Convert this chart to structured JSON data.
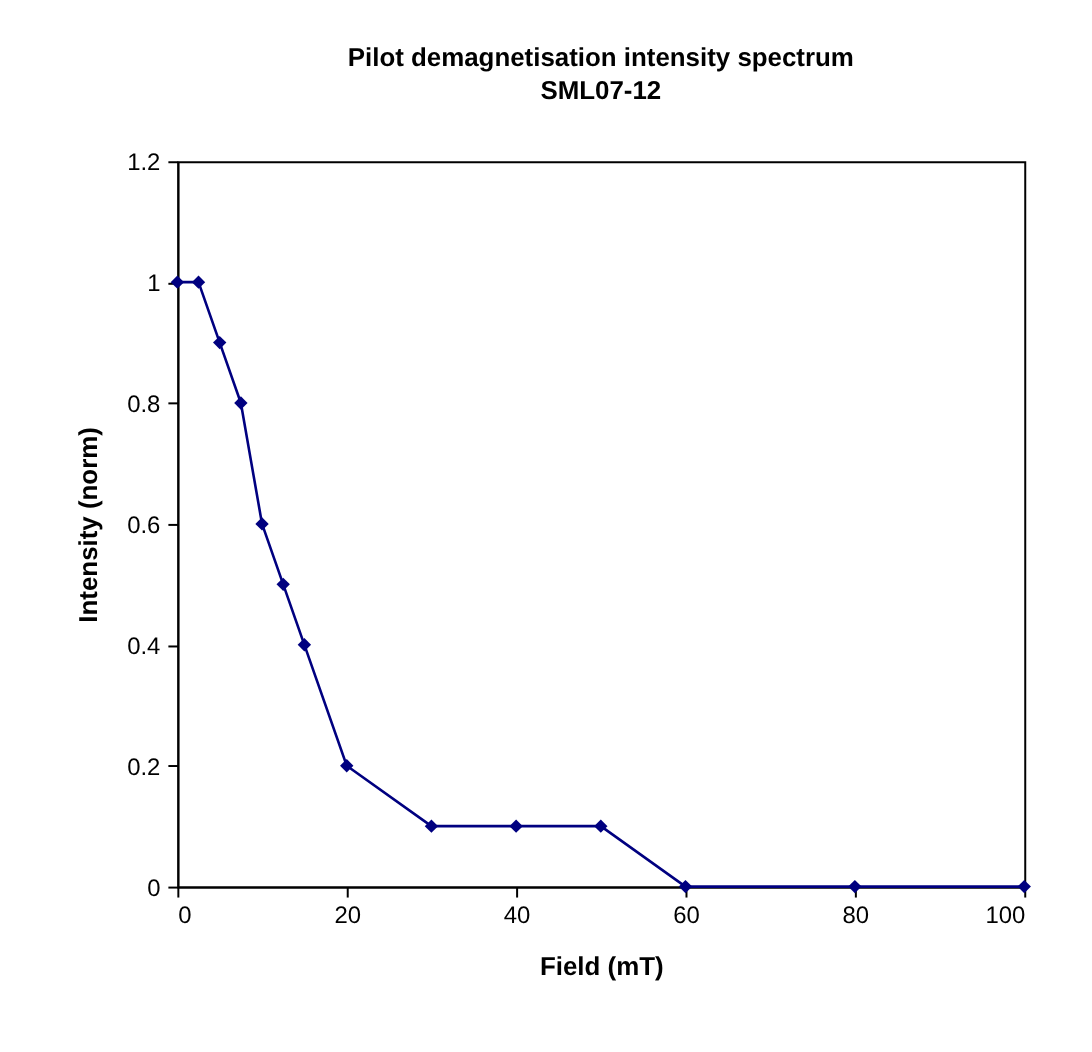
{
  "chart_data": {
    "type": "line",
    "title": "Pilot demagnetisation intensity spectrum",
    "subtitle": "SML07-12",
    "xlabel": "Field (mT)",
    "ylabel": "Intensity (norm)",
    "x": [
      0,
      2.5,
      5,
      7.5,
      10,
      12.5,
      15,
      20,
      30,
      40,
      50,
      60,
      80,
      100
    ],
    "series": [
      {
        "color": "#000080",
        "values": [
          1,
          1,
          0.9,
          0.8,
          0.6,
          0.5,
          0.4,
          0.2,
          0.1,
          0.1,
          0.1,
          0,
          0,
          0
        ]
      }
    ],
    "xlim": [
      0,
      100
    ],
    "xticks": [
      0,
      20,
      40,
      60,
      80,
      100
    ],
    "ylim": [
      0,
      1.2
    ],
    "yticks": [
      0,
      0.2,
      0.4,
      0.6,
      0.8,
      1,
      1.2
    ],
    "grid": false,
    "marker": "diamond",
    "line_style": "solid"
  }
}
